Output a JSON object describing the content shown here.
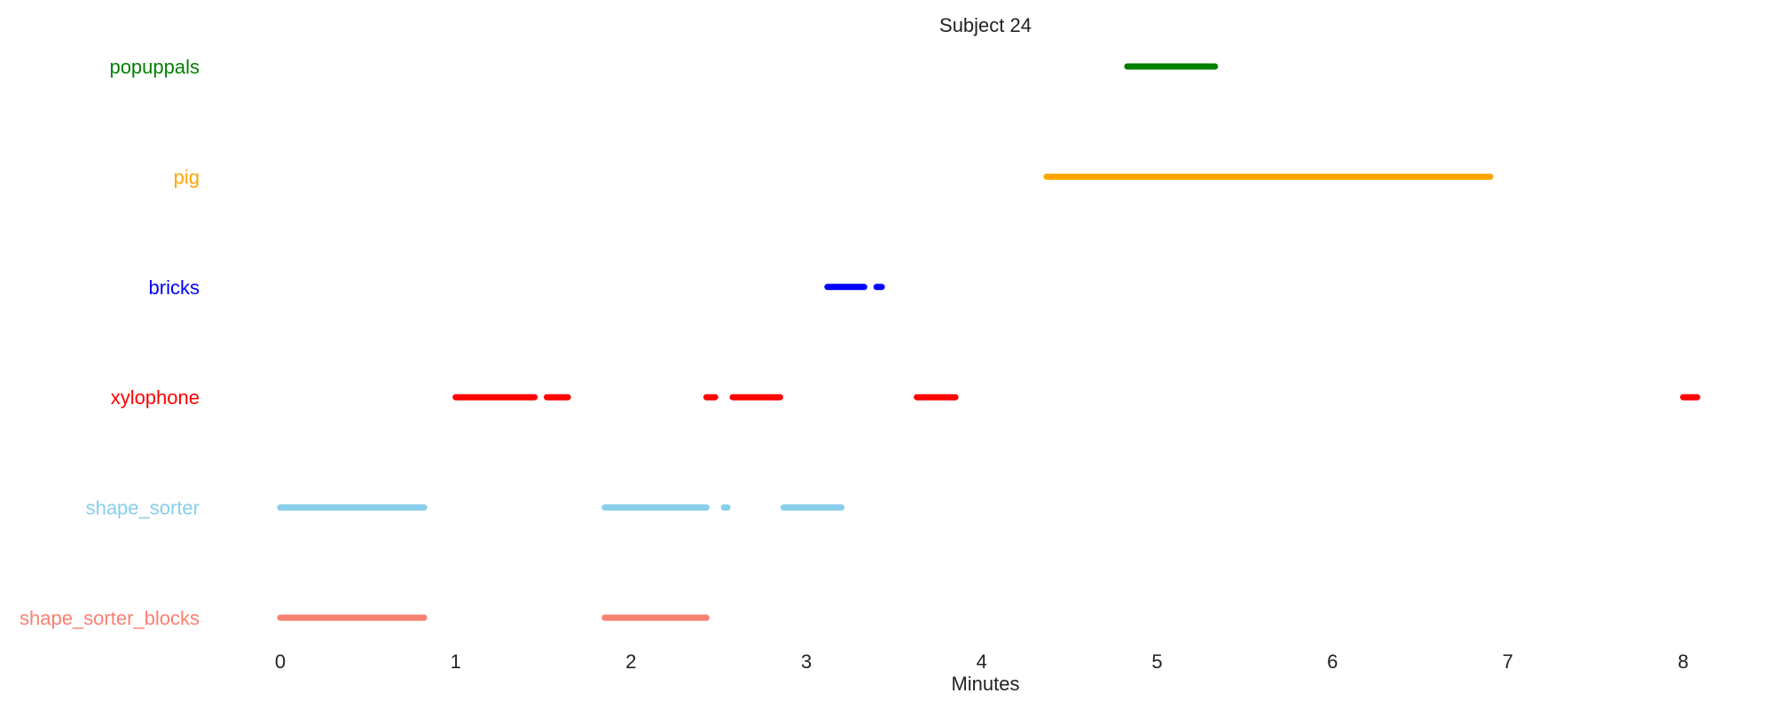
{
  "chart_data": {
    "type": "timeline",
    "title": "Subject 24",
    "xlabel": "Minutes",
    "xlim": [
      -0.3,
      8.4
    ],
    "xticks": [
      0,
      1,
      2,
      3,
      4,
      5,
      6,
      7,
      8
    ],
    "grid": false,
    "legend": "none",
    "rows": [
      {
        "label": "popuppals",
        "color": "#008000",
        "segments": [
          [
            4.83,
            5.33
          ]
        ]
      },
      {
        "label": "pig",
        "color": "#FFA500",
        "segments": [
          [
            4.37,
            6.9
          ]
        ]
      },
      {
        "label": "bricks",
        "color": "#0000FF",
        "segments": [
          [
            3.12,
            3.33
          ],
          [
            3.4,
            3.43
          ]
        ]
      },
      {
        "label": "xylophone",
        "color": "#FF0000",
        "segments": [
          [
            1.0,
            1.45
          ],
          [
            1.52,
            1.64
          ],
          [
            2.43,
            2.48
          ],
          [
            2.58,
            2.85
          ],
          [
            3.63,
            3.85
          ],
          [
            8.0,
            8.08
          ]
        ]
      },
      {
        "label": "shape_sorter",
        "color": "#87CEEB",
        "segments": [
          [
            0.0,
            0.82
          ],
          [
            1.85,
            2.43
          ],
          [
            2.53,
            2.55
          ],
          [
            2.87,
            3.2
          ]
        ]
      },
      {
        "label": "shape_sorter_blocks",
        "color": "#FA8072",
        "segments": [
          [
            0.0,
            0.82
          ],
          [
            1.85,
            2.43
          ]
        ]
      }
    ]
  }
}
